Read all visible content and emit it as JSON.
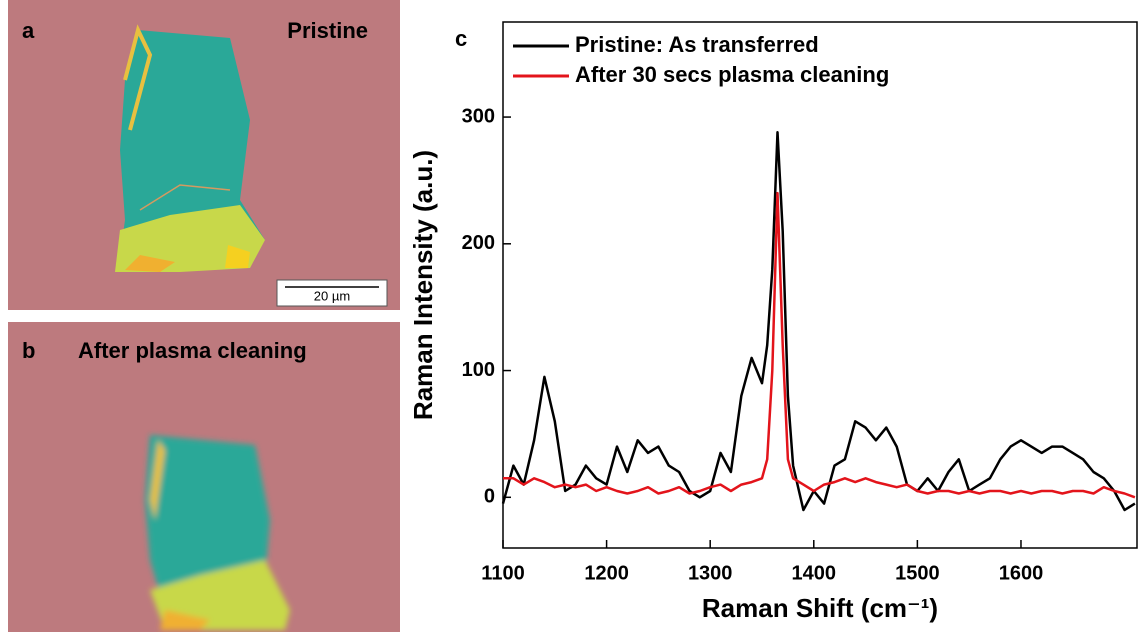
{
  "panels": [
    {
      "label": "a",
      "caption": "Pristine",
      "scale_bar": "20 µm"
    },
    {
      "label": "b",
      "caption": "After plasma cleaning"
    }
  ],
  "chart_data": {
    "type": "line",
    "label": "c",
    "x_label": "Raman Shift (cm⁻¹)",
    "y_label": "Raman Intensity (a.u.)",
    "xlim": [
      1100,
      1712
    ],
    "ylim": [
      -40,
      375
    ],
    "xticks": [
      1100,
      1200,
      1300,
      1400,
      1500,
      1600
    ],
    "yticks": [
      0,
      100,
      200,
      300
    ],
    "legend": "upper left",
    "x": [
      1100,
      1110,
      1120,
      1130,
      1140,
      1150,
      1160,
      1170,
      1180,
      1190,
      1200,
      1210,
      1220,
      1230,
      1240,
      1250,
      1260,
      1270,
      1280,
      1290,
      1300,
      1310,
      1320,
      1330,
      1340,
      1350,
      1355,
      1360,
      1365,
      1370,
      1375,
      1380,
      1390,
      1400,
      1410,
      1420,
      1430,
      1440,
      1450,
      1460,
      1470,
      1480,
      1490,
      1500,
      1510,
      1520,
      1530,
      1540,
      1550,
      1560,
      1570,
      1580,
      1590,
      1600,
      1610,
      1620,
      1630,
      1640,
      1650,
      1660,
      1670,
      1680,
      1690,
      1700,
      1710
    ],
    "series": [
      {
        "name": "Pristine: As transferred",
        "color": "#000000",
        "values": [
          -5,
          25,
          10,
          45,
          95,
          60,
          5,
          10,
          25,
          15,
          10,
          40,
          20,
          45,
          35,
          40,
          25,
          20,
          5,
          0,
          5,
          35,
          20,
          80,
          110,
          90,
          120,
          180,
          288,
          210,
          80,
          25,
          -10,
          5,
          -5,
          25,
          30,
          60,
          55,
          45,
          55,
          40,
          10,
          5,
          15,
          5,
          20,
          30,
          5,
          10,
          15,
          30,
          40,
          45,
          40,
          35,
          40,
          40,
          35,
          30,
          20,
          15,
          5,
          -10,
          -5
        ]
      },
      {
        "name": "After 30 secs plasma cleaning",
        "color": "#e3141b",
        "values": [
          15,
          15,
          10,
          15,
          12,
          8,
          10,
          8,
          10,
          5,
          8,
          5,
          3,
          5,
          8,
          3,
          5,
          8,
          3,
          5,
          8,
          10,
          5,
          10,
          12,
          15,
          30,
          100,
          240,
          120,
          30,
          15,
          10,
          5,
          10,
          12,
          15,
          12,
          15,
          12,
          10,
          8,
          10,
          5,
          3,
          5,
          5,
          3,
          5,
          3,
          5,
          5,
          3,
          5,
          3,
          5,
          5,
          3,
          5,
          5,
          3,
          8,
          5,
          3,
          0
        ]
      }
    ]
  }
}
